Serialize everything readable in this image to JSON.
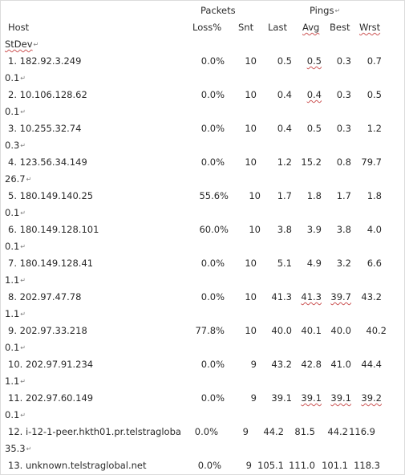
{
  "header": {
    "packets": "Packets",
    "pings": "Pings",
    "host": "Host",
    "loss": "Loss%",
    "snt": "Snt",
    "last": "Last",
    "avg": "Avg",
    "best": "Best",
    "wrst": "Wrst",
    "stdev": "StDev",
    "paragraph_mark": "↵"
  },
  "rows": [
    {
      "host": " 1. 182.92.3.249",
      "loss": "0.0%",
      "snt": "10",
      "last": "0.5",
      "avg": "0.5",
      "best": "0.3",
      "wrst": "0.7",
      "stdev": "0.1"
    },
    {
      "host": " 2. 10.106.128.62",
      "loss": "0.0%",
      "snt": "10",
      "last": "0.4",
      "avg": "0.4",
      "best": "0.3",
      "wrst": "0.5",
      "stdev": "0.1"
    },
    {
      "host": " 3. 10.255.32.74",
      "loss": "0.0%",
      "snt": "10",
      "last": "0.4",
      "avg": "0.5",
      "best": "0.3",
      "wrst": "1.2",
      "stdev": "0.3"
    },
    {
      "host": " 4. 123.56.34.149",
      "loss": "0.0%",
      "snt": "10",
      "last": "1.2",
      "avg": "15.2",
      "best": "0.8",
      "wrst": "79.7",
      "stdev": "26.7"
    },
    {
      "host": " 5. 180.149.140.25",
      "loss": "55.6%",
      "snt": "10",
      "last": "1.7",
      "avg": "1.8",
      "best": "1.7",
      "wrst": "1.8",
      "stdev": "0.1"
    },
    {
      "host": " 6. 180.149.128.101",
      "loss": "60.0%",
      "snt": "10",
      "last": "3.8",
      "avg": "3.9",
      "best": "3.8",
      "wrst": "4.0",
      "stdev": "0.1"
    },
    {
      "host": " 7. 180.149.128.41",
      "loss": "0.0%",
      "snt": "10",
      "last": "5.1",
      "avg": "4.9",
      "best": "3.2",
      "wrst": "6.6",
      "stdev": "1.1"
    },
    {
      "host": " 8. 202.97.47.78",
      "loss": "0.0%",
      "snt": "10",
      "last": "41.3",
      "avg": "41.3",
      "best": "39.7",
      "wrst": "43.2",
      "stdev": "1.1"
    },
    {
      "host": " 9. 202.97.33.218",
      "loss": "77.8%",
      "snt": "10",
      "last": "40.0",
      "avg": "40.1",
      "best": "40.0",
      "wrst": "40.2",
      "stdev": "0.1"
    },
    {
      "host": "10. 202.97.91.234",
      "loss": "0.0%",
      "snt": "9",
      "last": "43.2",
      "avg": "42.8",
      "best": "41.0",
      "wrst": "44.4",
      "stdev": "1.1"
    },
    {
      "host": "11. 202.97.60.149",
      "loss": "0.0%",
      "snt": "9",
      "last": "39.1",
      "avg": "39.1",
      "best": "39.1",
      "wrst": "39.2",
      "stdev": "0.1"
    },
    {
      "host": "12. i-12-1-peer.hkth01.pr.telstragloba",
      "loss": "0.0%",
      "snt": "9",
      "last": "44.2",
      "avg": "81.5",
      "best": "44.2",
      "wrst": "116.9",
      "stdev": "35.3"
    },
    {
      "host": "13. unknown.telstraglobal.net",
      "loss": "0.0%",
      "snt": "9",
      "last": "105.1",
      "avg": "111.0",
      "best": "101.1",
      "wrst": "118.3",
      "stdev": ""
    }
  ]
}
